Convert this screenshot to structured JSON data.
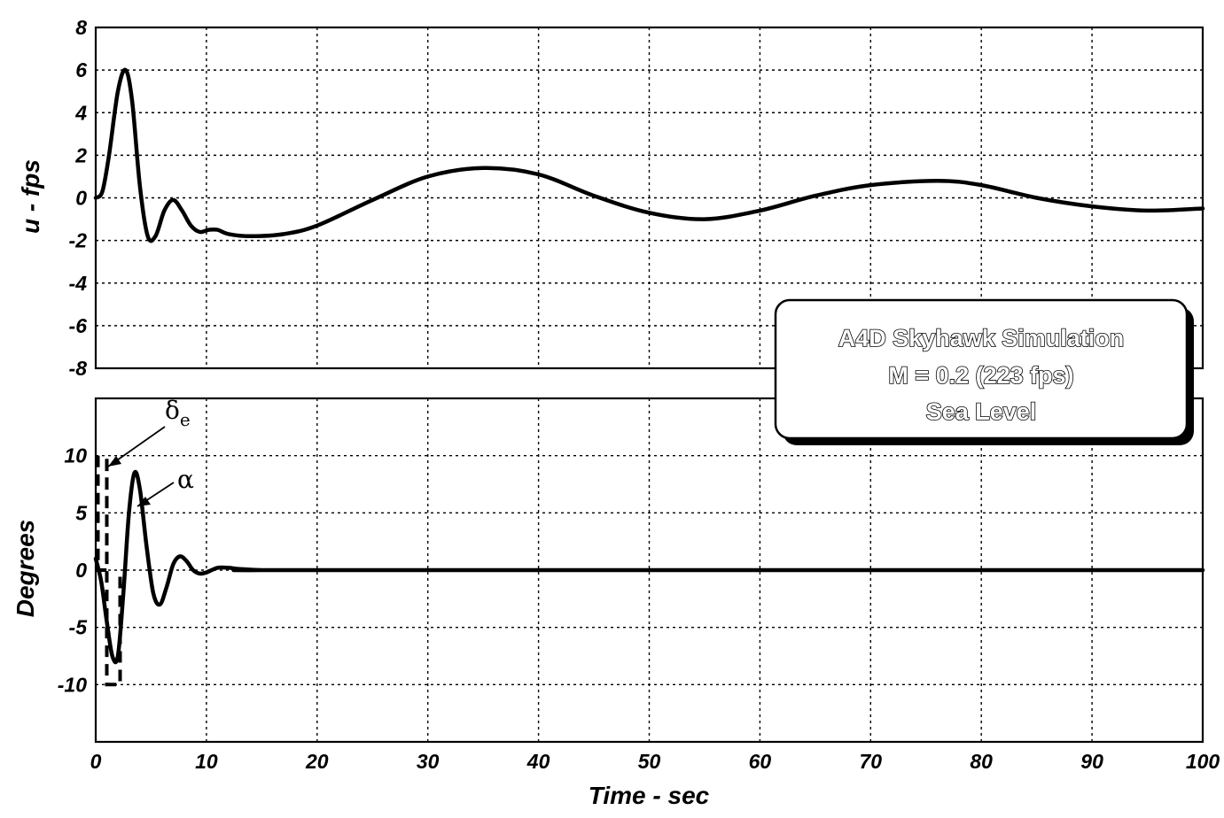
{
  "chart_data": [
    {
      "type": "line",
      "title": "",
      "xlabel": "",
      "ylabel": "u - fps",
      "xlim": [
        0,
        100
      ],
      "ylim": [
        -8,
        8
      ],
      "x_ticks": [
        "0",
        "10",
        "20",
        "30",
        "40",
        "50",
        "60",
        "70",
        "80",
        "90",
        "100"
      ],
      "y_ticks": [
        "-8",
        "-6",
        "-4",
        "-2",
        "0",
        "2",
        "4",
        "6",
        "8"
      ],
      "grid": true,
      "series": [
        {
          "style": "solid",
          "x": [
            0,
            0.6,
            1.2,
            2.0,
            2.7,
            3.3,
            4.0,
            4.7,
            5.4,
            6.2,
            7.0,
            7.8,
            8.6,
            9.4,
            10.2,
            11.0,
            12.0,
            14.0,
            17.0,
            20.0,
            25.0,
            30.0,
            35.0,
            40.0,
            45.0,
            50.0,
            55.0,
            60.0,
            65.0,
            70.0,
            76.0,
            80.0,
            85.0,
            90.0,
            95.0,
            100.0
          ],
          "values": [
            0,
            0.3,
            2.0,
            5.0,
            6.0,
            4.5,
            0.5,
            -1.8,
            -1.8,
            -0.6,
            -0.1,
            -0.6,
            -1.3,
            -1.6,
            -1.5,
            -1.5,
            -1.7,
            -1.8,
            -1.7,
            -1.3,
            -0.1,
            1.0,
            1.4,
            1.1,
            0.1,
            -0.7,
            -1.0,
            -0.6,
            0.1,
            0.6,
            0.8,
            0.6,
            0.0,
            -0.4,
            -0.6,
            -0.5
          ]
        }
      ]
    },
    {
      "type": "line",
      "title": "",
      "xlabel": "Time - sec",
      "ylabel": "Degrees",
      "xlim": [
        0,
        100
      ],
      "ylim": [
        -15,
        15
      ],
      "x_ticks": [
        "0",
        "10",
        "20",
        "30",
        "40",
        "50",
        "60",
        "70",
        "80",
        "90",
        "100"
      ],
      "y_ticks": [
        "-10",
        "-5",
        "0",
        "5",
        "10"
      ],
      "y_tick_values": [
        -10,
        -5,
        0,
        5,
        10
      ],
      "grid": true,
      "series": [
        {
          "name": "α",
          "style": "solid",
          "x": [
            0,
            0.5,
            1.0,
            1.5,
            2.0,
            2.5,
            3.0,
            3.5,
            4.0,
            4.6,
            5.2,
            5.8,
            6.4,
            7.0,
            7.6,
            8.2,
            8.8,
            9.4,
            10.0,
            11.0,
            12.0,
            13.0,
            15.0,
            20.0,
            100.0
          ],
          "values": [
            1,
            -1,
            -4.5,
            -7.5,
            -7.5,
            -2,
            5,
            8.5,
            7,
            2,
            -2,
            -3,
            -1.5,
            0.5,
            1.2,
            0.8,
            0,
            -0.3,
            -0.2,
            0.2,
            0.2,
            0.1,
            0,
            0,
            0
          ]
        },
        {
          "name": "δe",
          "style": "dashed",
          "x": [
            0.2,
            0.2,
            1.0,
            1.0,
            1.0,
            2.2,
            2.2
          ],
          "values": [
            10,
            0,
            0,
            10,
            -10,
            -10,
            0
          ]
        }
      ],
      "annotations": [
        "δe",
        "α"
      ]
    }
  ],
  "note_box": {
    "line1": "A4D Skyhawk Simulation",
    "line2": "M = 0.2 (223 fps)",
    "line3": "Sea Level"
  },
  "legend_labels": {
    "delta": "δ",
    "delta_sub": "e",
    "alpha": "α"
  }
}
